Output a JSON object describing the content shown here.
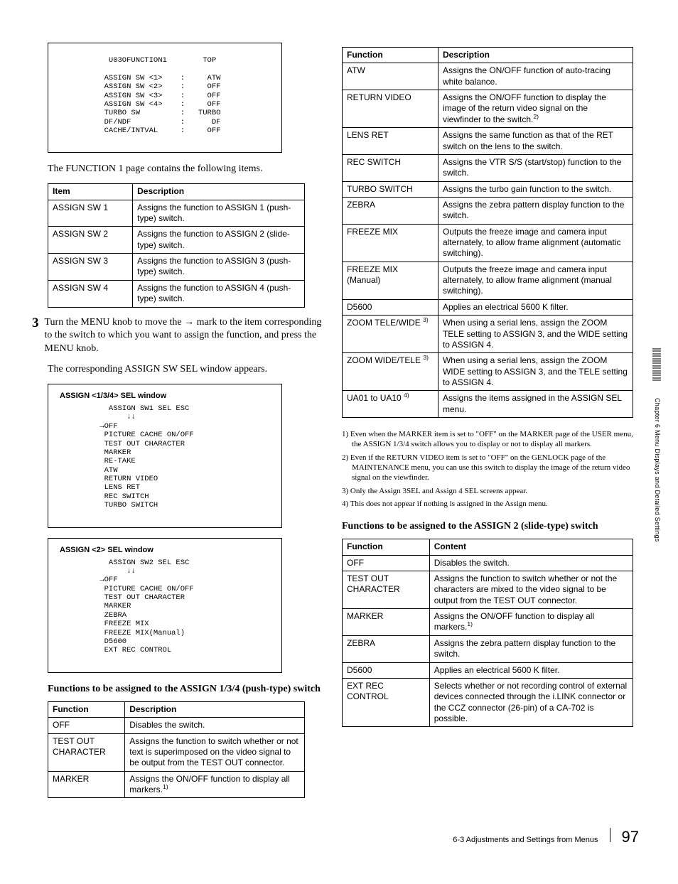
{
  "left": {
    "menu1": {
      "lines": "   U03OFUNCTION1        TOP\n\n  ASSIGN SW <1>    :     ATW\n  ASSIGN SW <2>    :     OFF\n  ASSIGN SW <3>    :     OFF\n  ASSIGN SW <4>    :     OFF\n  TURBO SW         :   TURBO\n  DF/NDF           :      DF\n  CACHE/INTVAL     :     OFF"
    },
    "intro1": "The FUNCTION 1 page contains the following items.",
    "table1": {
      "headers": [
        "Item",
        "Description"
      ],
      "rows": [
        [
          "ASSIGN SW 1",
          "Assigns the function to ASSIGN 1 (push-type) switch."
        ],
        [
          "ASSIGN SW 2",
          "Assigns the function to ASSIGN 2 (slide-type) switch."
        ],
        [
          "ASSIGN SW 3",
          "Assigns the function to ASSIGN 3 (push-type) switch."
        ],
        [
          "ASSIGN SW 4",
          "Assigns the function to ASSIGN 4 (push-type) switch."
        ]
      ]
    },
    "step3_num": "3",
    "step3_text": "Turn the MENU knob to move the → mark to the item corresponding to the switch to which you want to assign the function, and press the MENU knob.",
    "step3_follow": "The corresponding ASSIGN SW SEL window appears.",
    "win1": {
      "title": "ASSIGN <1/3/4> SEL window",
      "lines": "   ASSIGN SW1 SEL ESC\n       ↓↓\n →OFF\n  PICTURE CACHE ON/OFF\n  TEST OUT CHARACTER\n  MARKER\n  RE-TAKE\n  ATW\n  RETURN VIDEO\n  LENS RET\n  REC SWITCH\n  TURBO SWITCH"
    },
    "win2": {
      "title": "ASSIGN <2> SEL window",
      "lines": "   ASSIGN SW2 SEL ESC\n       ↓↓\n →OFF\n  PICTURE CACHE ON/OFF\n  TEST OUT CHARACTER\n  MARKER\n  ZEBRA\n  FREEZE MIX\n  FREEZE MIX(Manual)\n  D5600\n  EXT REC CONTROL"
    },
    "subhead1": "Functions to be assigned to the ASSIGN 1/3/4 (push-type) switch",
    "table2": {
      "headers": [
        "Function",
        "Description"
      ],
      "rows": [
        [
          "OFF",
          "Disables the switch."
        ],
        [
          "TEST OUT CHARACTER",
          "Assigns the function to switch whether or not text is superimposed on the video signal to be output from the TEST OUT connector."
        ],
        [
          "MARKER",
          "Assigns the ON/OFF function to display all markers.",
          "1)"
        ]
      ]
    }
  },
  "right": {
    "table3": {
      "headers": [
        "Function",
        "Description"
      ],
      "rows": [
        [
          "ATW",
          "",
          "Assigns the ON/OFF function of auto-tracing white balance."
        ],
        [
          "RETURN VIDEO",
          "",
          "Assigns the ON/OFF function to display the image of the return video signal on the viewfinder to the switch.",
          "2)"
        ],
        [
          "LENS RET",
          "",
          "Assigns the same function as that of the RET switch on the lens to the switch."
        ],
        [
          "REC SWITCH",
          "",
          "Assigns the VTR S/S (start/stop) function to the switch."
        ],
        [
          "TURBO SWITCH",
          "",
          "Assigns the turbo gain function to the switch."
        ],
        [
          "ZEBRA",
          "",
          "Assigns the zebra pattern display function to the switch."
        ],
        [
          "FREEZE MIX",
          "",
          "Outputs the freeze image and camera input alternately, to allow frame alignment (automatic switching)."
        ],
        [
          "FREEZE MIX (Manual)",
          "",
          "Outputs the freeze image and camera input alternately, to allow frame alignment (manual switching)."
        ],
        [
          "D5600",
          "",
          "Applies an electrical 5600 K filter."
        ],
        [
          "ZOOM TELE/WIDE",
          "3)",
          "When using a serial lens, assign the ZOOM TELE setting to ASSIGN 3, and the WIDE setting to ASSIGN 4."
        ],
        [
          "ZOOM WIDE/TELE",
          "3)",
          "When using a serial lens, assign the ZOOM WIDE setting to ASSIGN 3, and the TELE setting to ASSIGN 4."
        ],
        [
          "UA01 to UA10",
          "4)",
          "Assigns the items assigned in the ASSIGN SEL menu."
        ]
      ]
    },
    "notes": [
      "1) Even when the MARKER item is set to \"OFF\" on the MARKER page of the USER menu, the ASSIGN 1/3/4 switch allows you to display or not to display all markers.",
      "2) Even if the RETURN VIDEO item is set to \"OFF\" on the GENLOCK page of the MAINTENANCE menu, you can use this switch to display the image of the return video signal on the viewfinder.",
      "3) Only the Assign 3SEL and Assign 4 SEL screens appear.",
      "4) This does not appear if nothing is assigned in the Assign menu."
    ],
    "subhead2": "Functions to be assigned to the ASSIGN 2 (slide-type) switch",
    "table4": {
      "headers": [
        "Function",
        "Content"
      ],
      "rows": [
        [
          "OFF",
          "Disables the switch."
        ],
        [
          "TEST OUT CHARACTER",
          "Assigns the function to switch whether or not the characters are mixed to the video signal to be output from the TEST OUT connector."
        ],
        [
          "MARKER",
          "Assigns the ON/OFF function to display all markers.",
          "1)"
        ],
        [
          "ZEBRA",
          "Assigns the zebra pattern display function to the switch."
        ],
        [
          "D5600",
          "Applies an electrical 5600 K filter."
        ],
        [
          "EXT REC CONTROL",
          "Selects whether or not recording control of external devices connected through the i.LINK connector or the CCZ connector (26-pin) of a CA-702 is possible."
        ]
      ]
    }
  },
  "side_label": "Chapter 6   Menu Displays and Detailed Settings",
  "footer_text": "6-3 Adjustments and Settings from Menus",
  "page_no": "97"
}
